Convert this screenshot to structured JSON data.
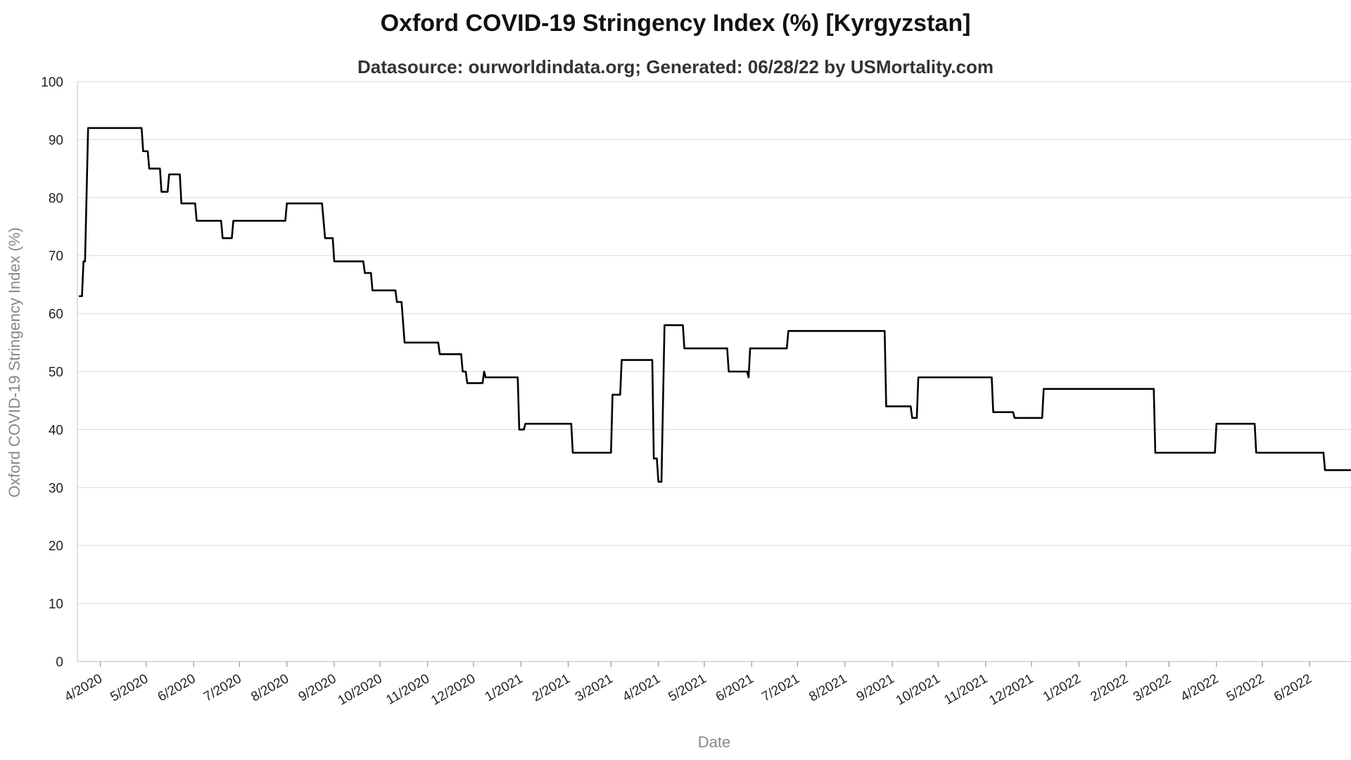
{
  "chart_data": {
    "type": "line",
    "title": "Oxford COVID-19 Stringency Index (%) [Kyrgyzstan]",
    "subtitle": "Datasource: ourworldindata.org; Generated: 06/28/22 by USMortality.com",
    "xlabel": "Date",
    "ylabel": "Oxford COVID-19 Stringency Index (%)",
    "ylim": [
      0,
      100
    ],
    "yticks": [
      0,
      10,
      20,
      30,
      40,
      50,
      60,
      70,
      80,
      90,
      100
    ],
    "xlim": [
      "2020-03-17",
      "2022-06-28"
    ],
    "xticks": [
      {
        "date": "2020-04-01",
        "label": "4/2020"
      },
      {
        "date": "2020-05-01",
        "label": "5/2020"
      },
      {
        "date": "2020-06-01",
        "label": "6/2020"
      },
      {
        "date": "2020-07-01",
        "label": "7/2020"
      },
      {
        "date": "2020-08-01",
        "label": "8/2020"
      },
      {
        "date": "2020-09-01",
        "label": "9/2020"
      },
      {
        "date": "2020-10-01",
        "label": "10/2020"
      },
      {
        "date": "2020-11-01",
        "label": "11/2020"
      },
      {
        "date": "2020-12-01",
        "label": "12/2020"
      },
      {
        "date": "2021-01-01",
        "label": "1/2021"
      },
      {
        "date": "2021-02-01",
        "label": "2/2021"
      },
      {
        "date": "2021-03-01",
        "label": "3/2021"
      },
      {
        "date": "2021-04-01",
        "label": "4/2021"
      },
      {
        "date": "2021-05-01",
        "label": "5/2021"
      },
      {
        "date": "2021-06-01",
        "label": "6/2021"
      },
      {
        "date": "2021-07-01",
        "label": "7/2021"
      },
      {
        "date": "2021-08-01",
        "label": "8/2021"
      },
      {
        "date": "2021-09-01",
        "label": "9/2021"
      },
      {
        "date": "2021-10-01",
        "label": "10/2021"
      },
      {
        "date": "2021-11-01",
        "label": "11/2021"
      },
      {
        "date": "2021-12-01",
        "label": "12/2021"
      },
      {
        "date": "2022-01-01",
        "label": "1/2022"
      },
      {
        "date": "2022-02-01",
        "label": "2/2022"
      },
      {
        "date": "2022-03-01",
        "label": "3/2022"
      },
      {
        "date": "2022-04-01",
        "label": "4/2022"
      },
      {
        "date": "2022-05-01",
        "label": "5/2022"
      },
      {
        "date": "2022-06-01",
        "label": "6/2022"
      }
    ],
    "grid": "horizontal",
    "line_color": "#000000",
    "series": [
      {
        "points": [
          [
            "2020-03-18",
            63
          ],
          [
            "2020-03-20",
            63
          ],
          [
            "2020-03-21",
            69
          ],
          [
            "2020-03-22",
            69
          ],
          [
            "2020-03-24",
            92
          ],
          [
            "2020-04-28",
            92
          ],
          [
            "2020-04-29",
            88
          ],
          [
            "2020-05-02",
            88
          ],
          [
            "2020-05-03",
            85
          ],
          [
            "2020-05-10",
            85
          ],
          [
            "2020-05-11",
            81
          ],
          [
            "2020-05-15",
            81
          ],
          [
            "2020-05-16",
            84
          ],
          [
            "2020-05-23",
            84
          ],
          [
            "2020-05-24",
            79
          ],
          [
            "2020-06-02",
            79
          ],
          [
            "2020-06-03",
            76
          ],
          [
            "2020-06-19",
            76
          ],
          [
            "2020-06-20",
            73
          ],
          [
            "2020-06-26",
            73
          ],
          [
            "2020-06-27",
            76
          ],
          [
            "2020-07-31",
            76
          ],
          [
            "2020-08-01",
            79
          ],
          [
            "2020-08-24",
            79
          ],
          [
            "2020-08-26",
            73
          ],
          [
            "2020-08-31",
            73
          ],
          [
            "2020-09-01",
            69
          ],
          [
            "2020-09-20",
            69
          ],
          [
            "2020-09-21",
            67
          ],
          [
            "2020-09-25",
            67
          ],
          [
            "2020-09-26",
            64
          ],
          [
            "2020-10-11",
            64
          ],
          [
            "2020-10-12",
            62
          ],
          [
            "2020-10-15",
            62
          ],
          [
            "2020-10-17",
            55
          ],
          [
            "2020-11-08",
            55
          ],
          [
            "2020-11-09",
            53
          ],
          [
            "2020-11-23",
            53
          ],
          [
            "2020-11-24",
            50
          ],
          [
            "2020-11-26",
            50
          ],
          [
            "2020-11-27",
            48
          ],
          [
            "2020-12-07",
            48
          ],
          [
            "2020-12-08",
            50
          ],
          [
            "2020-12-09",
            49
          ],
          [
            "2020-12-30",
            49
          ],
          [
            "2020-12-31",
            40
          ],
          [
            "2021-01-03",
            40
          ],
          [
            "2021-01-04",
            41
          ],
          [
            "2021-02-03",
            41
          ],
          [
            "2021-02-04",
            36
          ],
          [
            "2021-03-01",
            36
          ],
          [
            "2021-03-02",
            46
          ],
          [
            "2021-03-07",
            46
          ],
          [
            "2021-03-08",
            52
          ],
          [
            "2021-03-28",
            52
          ],
          [
            "2021-03-29",
            35
          ],
          [
            "2021-03-31",
            35
          ],
          [
            "2021-04-01",
            31
          ],
          [
            "2021-04-03",
            31
          ],
          [
            "2021-04-05",
            58
          ],
          [
            "2021-04-17",
            58
          ],
          [
            "2021-04-18",
            54
          ],
          [
            "2021-05-16",
            54
          ],
          [
            "2021-05-17",
            50
          ],
          [
            "2021-05-29",
            50
          ],
          [
            "2021-05-30",
            49
          ],
          [
            "2021-05-31",
            54
          ],
          [
            "2021-06-24",
            54
          ],
          [
            "2021-06-25",
            57
          ],
          [
            "2021-08-27",
            57
          ],
          [
            "2021-08-28",
            44
          ],
          [
            "2021-09-13",
            44
          ],
          [
            "2021-09-14",
            42
          ],
          [
            "2021-09-17",
            42
          ],
          [
            "2021-09-18",
            49
          ],
          [
            "2021-11-05",
            49
          ],
          [
            "2021-11-06",
            43
          ],
          [
            "2021-11-19",
            43
          ],
          [
            "2021-11-20",
            42
          ],
          [
            "2021-12-08",
            42
          ],
          [
            "2021-12-09",
            47
          ],
          [
            "2022-02-19",
            47
          ],
          [
            "2022-02-20",
            36
          ],
          [
            "2022-03-31",
            36
          ],
          [
            "2022-04-01",
            41
          ],
          [
            "2022-04-26",
            41
          ],
          [
            "2022-04-27",
            36
          ],
          [
            "2022-06-10",
            36
          ],
          [
            "2022-06-11",
            33
          ],
          [
            "2022-06-28",
            33
          ]
        ]
      }
    ]
  }
}
